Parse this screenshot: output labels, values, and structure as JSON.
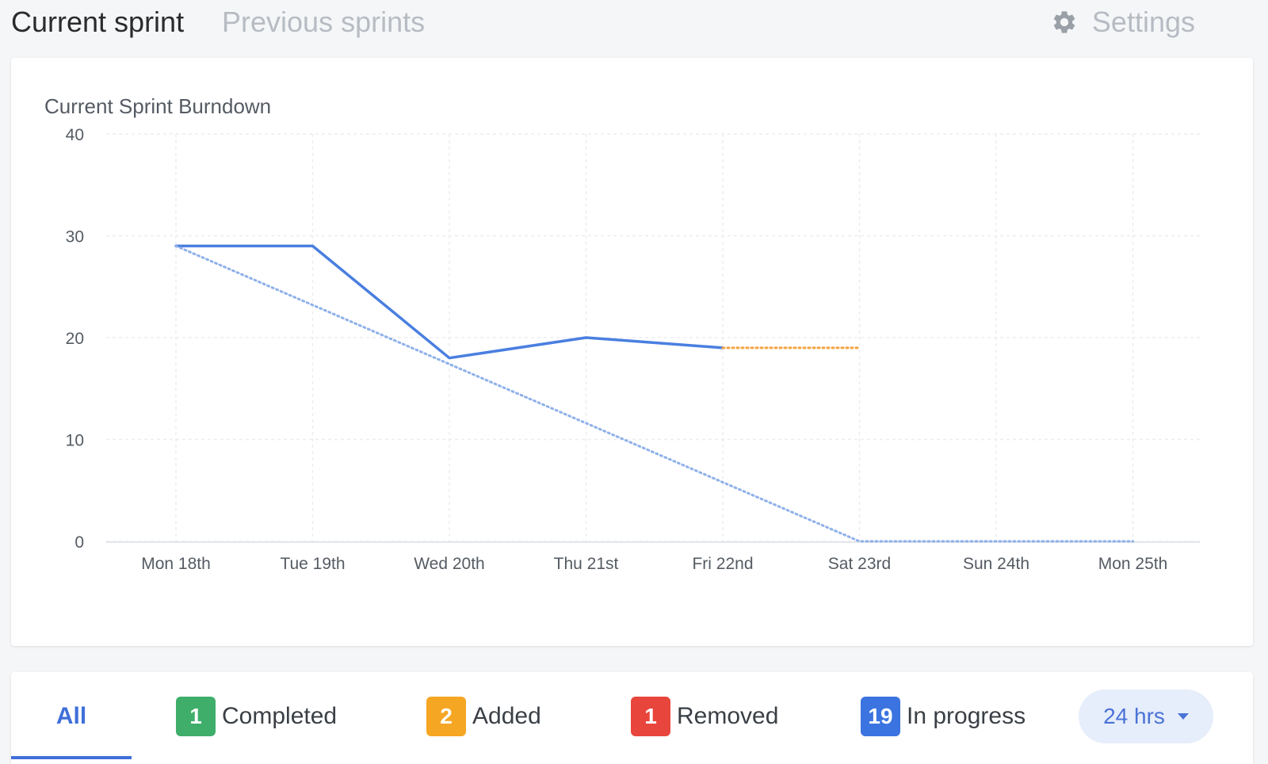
{
  "tabs": {
    "current": "Current sprint",
    "previous": "Previous sprints",
    "settings": "Settings"
  },
  "chart_data": {
    "type": "line",
    "title": "Current Sprint Burndown",
    "categories": [
      "Mon 18th",
      "Tue 19th",
      "Wed 20th",
      "Thu 21st",
      "Fri 22nd",
      "Sat 23rd",
      "Sun 24th",
      "Mon 25th"
    ],
    "ylim": [
      0,
      40
    ],
    "yticks": [
      0,
      10,
      20,
      30,
      40
    ],
    "grid": true,
    "colors": {
      "actual": "#4a7fe0",
      "ideal": "#8fb1ea",
      "projected": "#f5a442",
      "grid": "#ebedf0"
    },
    "series": [
      {
        "key": "actual",
        "style": "solid",
        "values": [
          29,
          29,
          18,
          20,
          19,
          null,
          null,
          null
        ]
      },
      {
        "key": "ideal",
        "style": "dotted",
        "values": [
          29,
          23.2,
          17.4,
          11.6,
          5.8,
          0,
          0,
          0
        ]
      },
      {
        "key": "projected",
        "style": "dotted",
        "values": [
          null,
          null,
          null,
          null,
          19,
          19,
          null,
          null
        ]
      }
    ]
  },
  "filters": {
    "all": "All",
    "completed": {
      "count": "1",
      "label": "Completed",
      "color": "#3fae6a"
    },
    "added": {
      "count": "2",
      "label": "Added",
      "color": "#f5a623"
    },
    "removed": {
      "count": "1",
      "label": "Removed",
      "color": "#e8453c"
    },
    "in_progress": {
      "count": "19",
      "label": "In progress",
      "color": "#3b74e0"
    }
  },
  "time_range": "24 hrs"
}
